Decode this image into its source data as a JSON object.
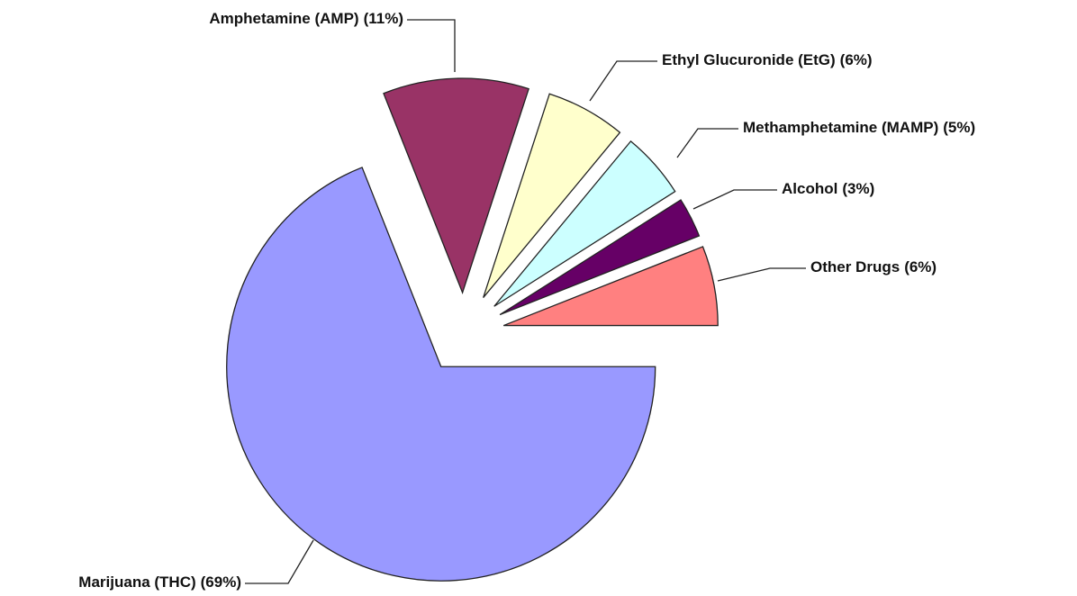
{
  "chart_data": {
    "type": "pie",
    "categories": [
      "Marijuana (THC)",
      "Amphetamine (AMP)",
      "Ethyl Glucuronide (EtG)",
      "Methamphetamine (MAMP)",
      "Alcohol",
      "Other Drugs"
    ],
    "values": [
      69,
      11,
      6,
      5,
      3,
      6
    ],
    "value_labels": [
      "(69%)",
      "(11%)",
      "(6%)",
      "(5%)",
      "(3%)",
      "(6%)"
    ],
    "colors": [
      "#9999ff",
      "#993366",
      "#ffffcc",
      "#ccffff",
      "#660066",
      "#ff8080"
    ]
  }
}
